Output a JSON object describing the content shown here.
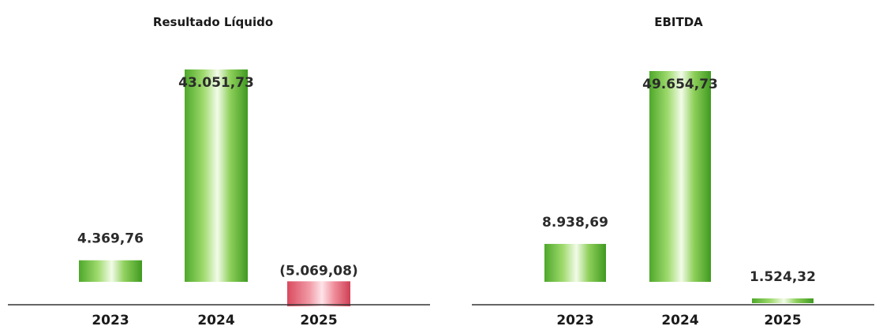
{
  "chart_data": [
    {
      "type": "bar",
      "title": "Resultado Líquido",
      "categories": [
        "2023",
        "2024",
        "2025"
      ],
      "values": [
        4369.76,
        43051.73,
        -5069.08
      ],
      "labels": [
        "4.369,76",
        "43.051,73",
        "(5.069,08)"
      ]
    },
    {
      "type": "bar",
      "title": "EBITDA",
      "categories": [
        "2023",
        "2024",
        "2025"
      ],
      "values": [
        8938.69,
        49654.73,
        1524.32
      ],
      "labels": [
        "8.938,69",
        "49.654,73",
        "1.524,32"
      ]
    }
  ],
  "colors": {
    "positive": "#6fbf3a",
    "negative": "#e06070",
    "axis": "#333333"
  }
}
